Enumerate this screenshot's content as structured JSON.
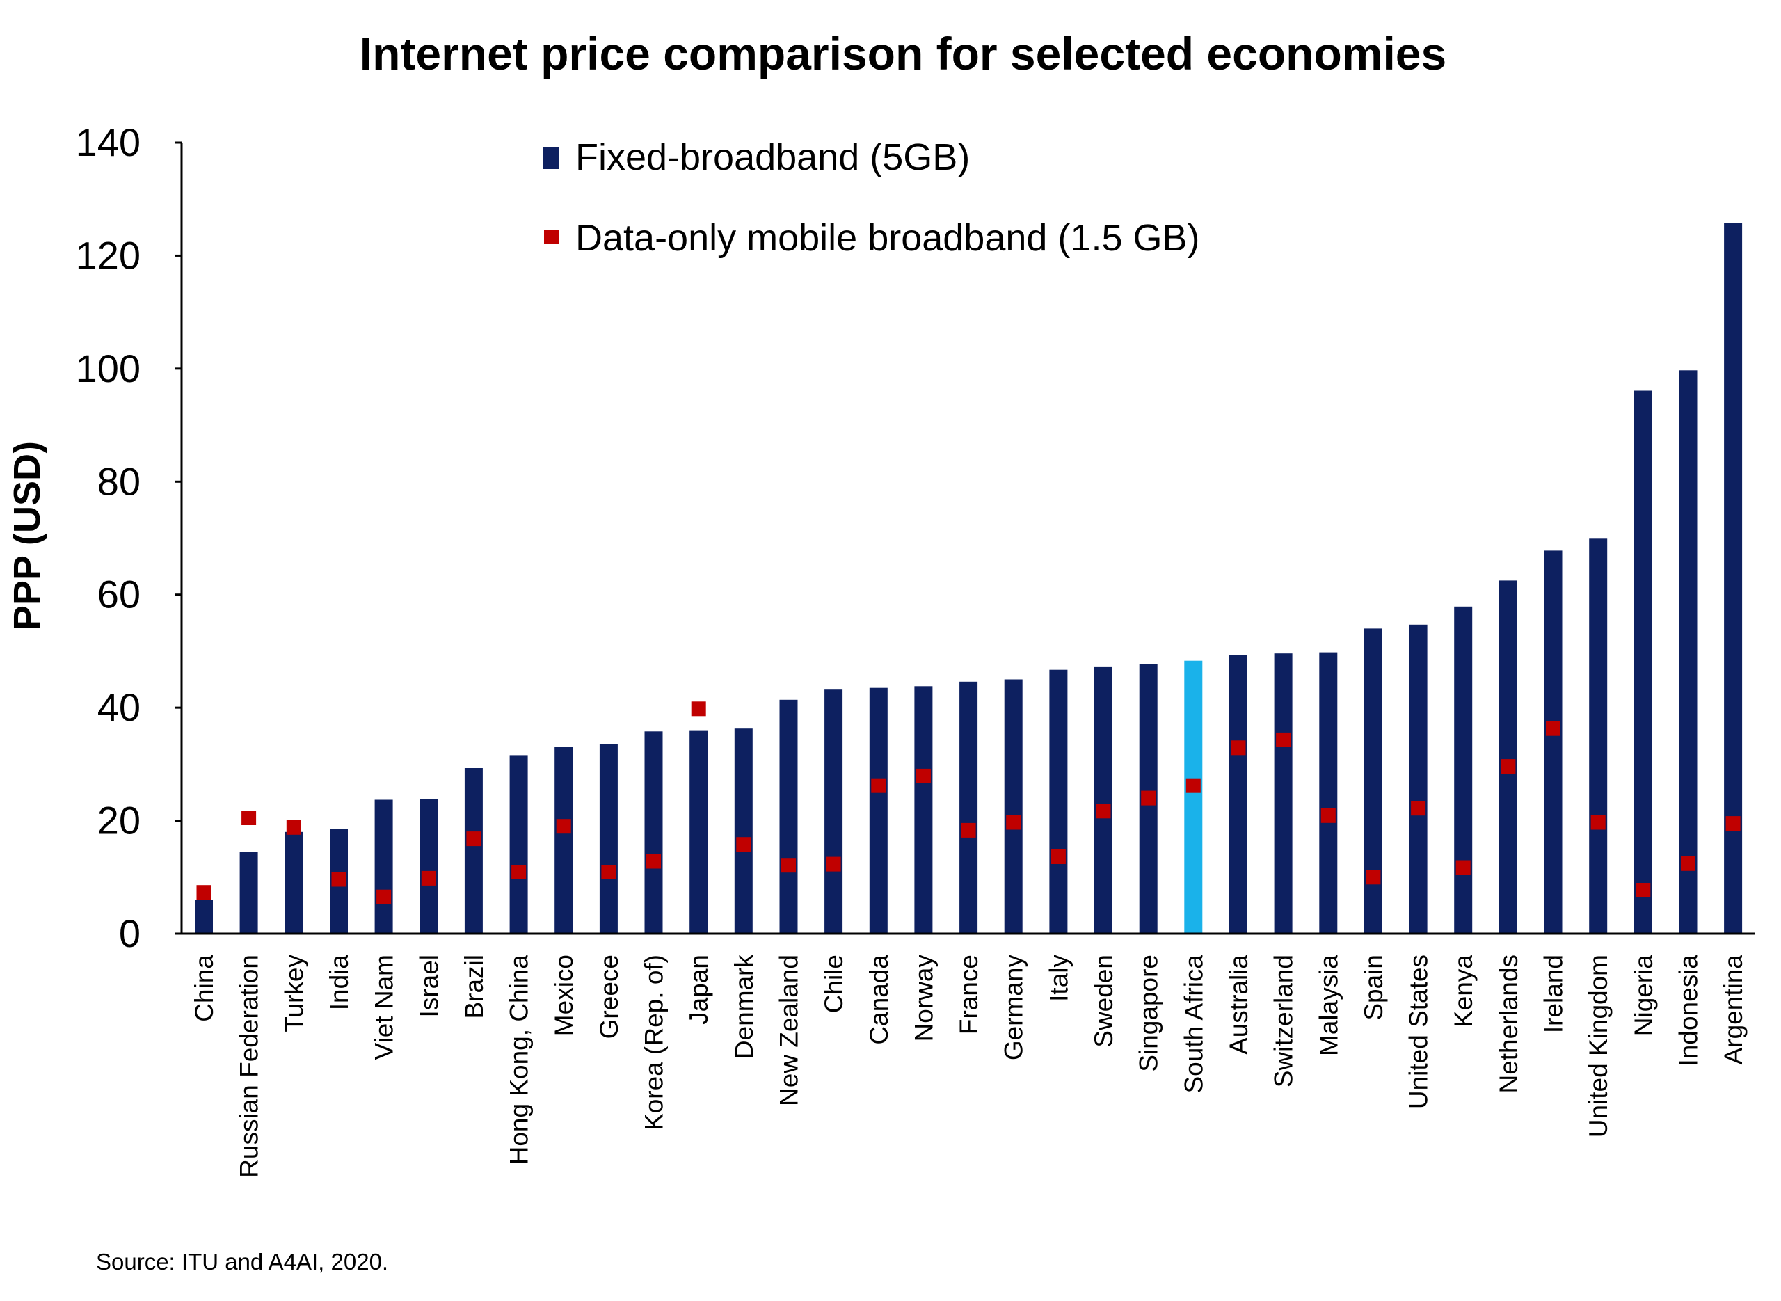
{
  "chart_data": {
    "type": "bar",
    "title": "Internet price comparison for selected economies",
    "ylabel": "PPP (USD)",
    "xlabel": "",
    "ylim": [
      0,
      140
    ],
    "yticks": [
      "0",
      "20",
      "40",
      "60",
      "80",
      "100",
      "120",
      "140"
    ],
    "legend_position": "top-center",
    "grid": false,
    "categories": [
      "China",
      "Russian Federation",
      "Turkey",
      "India",
      "Viet Nam",
      "Israel",
      "Brazil",
      "Hong Kong, China",
      "Mexico",
      "Greece",
      "Korea (Rep. of)",
      "Japan",
      "Denmark",
      "New Zealand",
      "Chile",
      "Canada",
      "Norway",
      "France",
      "Germany",
      "Italy",
      "Sweden",
      "Singapore",
      "South Africa",
      "Australia",
      "Switzerland",
      "Malaysia",
      "Spain",
      "United States",
      "Kenya",
      "Netherlands",
      "Ireland",
      "United Kingdom",
      "Nigeria",
      "Indonesia",
      "Argentina"
    ],
    "series": [
      {
        "name": "Fixed-broadband (5GB)",
        "kind": "bar",
        "color": "#0d2060",
        "highlight": {
          "category": "South Africa",
          "color": "#1ab2ea"
        },
        "values": [
          6,
          14.5,
          18,
          18.5,
          23.7,
          23.8,
          29.3,
          31.6,
          33,
          33.5,
          35.8,
          36,
          36.3,
          41.4,
          43.2,
          43.5,
          43.8,
          44.6,
          45,
          46.7,
          47.3,
          47.7,
          48.3,
          49.3,
          49.6,
          49.8,
          54,
          54.7,
          57.9,
          62.5,
          67.8,
          69.9,
          96.1,
          99.7,
          125.8
        ]
      },
      {
        "name": "Data-only mobile broadband (1.5 GB)",
        "kind": "marker",
        "color": "#c00000",
        "values": [
          7.3,
          20.5,
          18.8,
          9.6,
          6.5,
          9.8,
          16.8,
          10.9,
          19,
          10.9,
          12.8,
          39.8,
          15.8,
          12.1,
          12.3,
          26.2,
          27.9,
          18.3,
          19.7,
          13.6,
          21.7,
          24,
          26.2,
          32.9,
          34.3,
          20.9,
          10,
          22.2,
          11.7,
          29.6,
          36.3,
          19.7,
          7.7,
          12.4,
          19.5
        ]
      }
    ],
    "source": "Source: ITU and A4AI, 2020."
  }
}
